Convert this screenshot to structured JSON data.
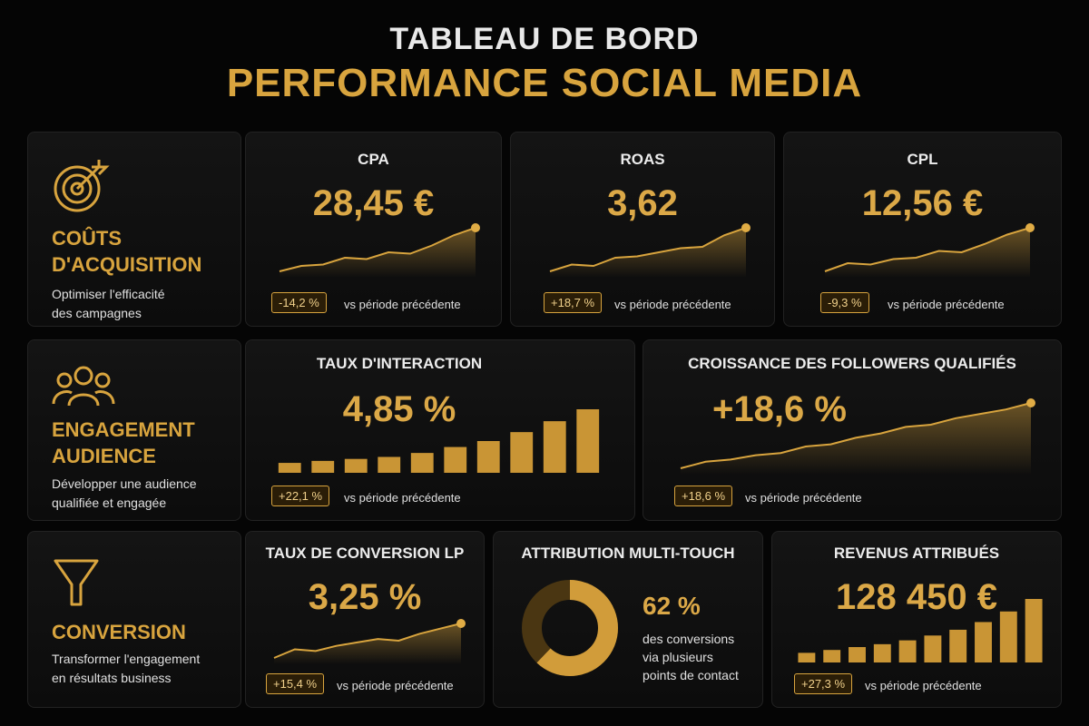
{
  "header": {
    "title": "TABLEAU DE BORD",
    "subtitle": "PERFORMANCE SOCIAL MEDIA"
  },
  "colors": {
    "accent": "#d8a43e",
    "background": "#050505",
    "panel": "#111111"
  },
  "sections": [
    {
      "icon": "target-icon",
      "title_line1": "COÛTS",
      "title_line2": "D'ACQUISITION",
      "desc_line1": "Optimiser l'efficacité",
      "desc_line2": "des campagnes"
    },
    {
      "icon": "users-icon",
      "title_line1": "ENGAGEMENT",
      "title_line2": "AUDIENCE",
      "desc_line1": "Développer une audience",
      "desc_line2": "qualifiée et engagée"
    },
    {
      "icon": "funnel-icon",
      "title_line1": "CONVERSION",
      "title_line2": "",
      "desc_line1": "Transformer l'engagement",
      "desc_line2": "en résultats business"
    }
  ],
  "cards": {
    "cpa": {
      "title": "CPA",
      "value": "28,45 €",
      "badge": "-14,2 %",
      "compare": "vs période précédente"
    },
    "roas": {
      "title": "ROAS",
      "value": "3,62",
      "badge": "+18,7 %",
      "compare": "vs période précédente"
    },
    "cpl": {
      "title": "CPL",
      "value": "12,56 €",
      "badge": "-9,3 %",
      "compare": "vs période précédente"
    },
    "interaction": {
      "title": "TAUX D'INTERACTION",
      "value": "4,85 %",
      "badge": "+22,1 %",
      "compare": "vs période précédente"
    },
    "followers": {
      "title": "CROISSANCE DES FOLLOWERS QUALIFIÉS",
      "value": "+18,6 %",
      "badge": "+18,6 %",
      "compare": "vs période précédente"
    },
    "conversion": {
      "title": "TAUX DE CONVERSION LP",
      "value": "3,25 %",
      "badge": "+15,4 %",
      "compare": "vs période précédente"
    },
    "attribution": {
      "title": "ATTRIBUTION MULTI-TOUCH",
      "value": "62 %",
      "desc_line1": "des conversions",
      "desc_line2": "via plusieurs",
      "desc_line3": "points de contact",
      "share": 0.62
    },
    "revenus": {
      "title": "REVENUS ATTRIBUÉS",
      "value": "128 450 €",
      "badge": "+27,3 %",
      "compare": "vs période précédente"
    }
  },
  "chart_data": [
    {
      "type": "line",
      "id": "cpa",
      "values": [
        2,
        10,
        12,
        22,
        20,
        30,
        28,
        40,
        55,
        66
      ]
    },
    {
      "type": "line",
      "id": "roas",
      "values": [
        2,
        12,
        10,
        22,
        24,
        30,
        36,
        38,
        55,
        66
      ]
    },
    {
      "type": "line",
      "id": "cpl",
      "values": [
        2,
        14,
        12,
        20,
        22,
        32,
        30,
        42,
        56,
        66
      ]
    },
    {
      "type": "bar",
      "id": "interaction",
      "values": [
        1,
        1.2,
        1.4,
        1.6,
        2,
        2.6,
        3.2,
        4.1,
        5.2,
        6.4
      ]
    },
    {
      "type": "line",
      "id": "followers",
      "values": [
        2,
        8,
        10,
        14,
        16,
        22,
        24,
        30,
        34,
        40,
        42,
        48,
        52,
        56,
        62
      ]
    },
    {
      "type": "line",
      "id": "conversion",
      "values": [
        2,
        12,
        10,
        16,
        20,
        24,
        22,
        30,
        36,
        42
      ]
    },
    {
      "type": "bar",
      "id": "revenus",
      "values": [
        1,
        1.3,
        1.6,
        1.9,
        2.3,
        2.8,
        3.4,
        4.2,
        5.3,
        6.6
      ]
    }
  ]
}
